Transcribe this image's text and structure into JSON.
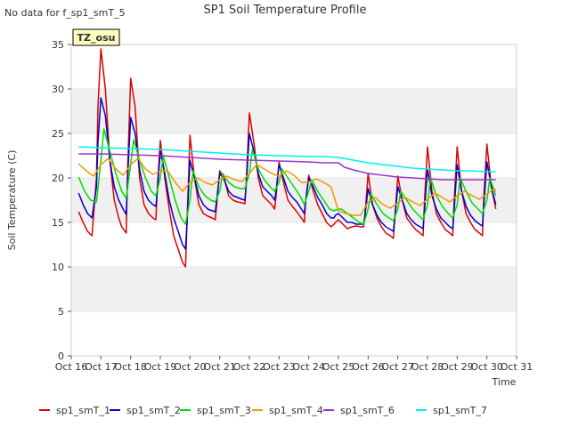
{
  "header": {
    "note": "No data for f_sp1_smT_5"
  },
  "chart_data": {
    "type": "line",
    "title": "SP1 Soil Temperature Profile",
    "xlabel": "Time",
    "ylabel": "Soil Temperature (C)",
    "badge": "TZ_osu",
    "xlim": [
      16,
      31
    ],
    "ylim": [
      0,
      35
    ],
    "x_ticks": [
      16,
      17,
      18,
      19,
      20,
      21,
      22,
      23,
      24,
      25,
      26,
      27,
      28,
      29,
      30,
      31
    ],
    "x_tick_labels": [
      "Oct 16",
      "Oct 17",
      "Oct 18",
      "Oct 19",
      "Oct 20",
      "Oct 21",
      "Oct 22",
      "Oct 23",
      "Oct 24",
      "Oct 25",
      "Oct 26",
      "Oct 27",
      "Oct 28",
      "Oct 29",
      "Oct 30",
      "Oct 31"
    ],
    "y_ticks": [
      0,
      5,
      10,
      15,
      20,
      25,
      30,
      35
    ],
    "y_tick_labels": [
      "0",
      "5",
      "10",
      "15",
      "20",
      "25",
      "30",
      "35"
    ],
    "grid": "horizontal bands",
    "legend_position": "bottom",
    "series": [
      {
        "name": "sp1_smT_1",
        "color": "#dd0000",
        "x": [
          16.25,
          16.4,
          16.55,
          16.7,
          16.85,
          16.9,
          17.0,
          17.15,
          17.3,
          17.45,
          17.6,
          17.7,
          17.85,
          17.9,
          18.0,
          18.15,
          18.3,
          18.45,
          18.6,
          18.75,
          18.85,
          18.9,
          19.0,
          19.15,
          19.3,
          19.45,
          19.6,
          19.75,
          19.85,
          19.9,
          20.0,
          20.15,
          20.3,
          20.45,
          20.6,
          20.75,
          20.85,
          20.9,
          21.0,
          21.15,
          21.3,
          21.45,
          21.6,
          21.75,
          21.85,
          21.9,
          22.0,
          22.15,
          22.3,
          22.45,
          22.6,
          22.75,
          22.85,
          22.9,
          23.0,
          23.15,
          23.3,
          23.45,
          23.6,
          23.75,
          23.85,
          23.9,
          24.0,
          24.15,
          24.3,
          24.45,
          24.6,
          24.75,
          24.85,
          24.9,
          25.0,
          25.15,
          25.3,
          25.45,
          25.6,
          25.75,
          25.85,
          25.9,
          26.0,
          26.15,
          26.3,
          26.45,
          26.6,
          26.75,
          26.85,
          26.9,
          27.0,
          27.15,
          27.3,
          27.45,
          27.6,
          27.75,
          27.85,
          27.9,
          28.0,
          28.15,
          28.3,
          28.45,
          28.6,
          28.75,
          28.85,
          28.9,
          29.0,
          29.15,
          29.3,
          29.45,
          29.6,
          29.75,
          29.85,
          29.9,
          30.0,
          30.15,
          30.3
        ],
        "y": [
          16.2,
          15.0,
          14.0,
          13.5,
          20.0,
          28.0,
          34.5,
          30.0,
          22.0,
          17.5,
          15.5,
          14.5,
          13.8,
          21.0,
          31.2,
          28.0,
          20.0,
          17.0,
          16.0,
          15.5,
          15.3,
          19.0,
          24.2,
          20.0,
          16.5,
          13.5,
          12.0,
          10.5,
          10.0,
          15.0,
          24.8,
          20.0,
          17.0,
          16.0,
          15.7,
          15.5,
          15.3,
          17.0,
          20.8,
          20.0,
          18.0,
          17.5,
          17.3,
          17.2,
          17.1,
          20.0,
          27.3,
          24.0,
          20.0,
          18.0,
          17.5,
          17.0,
          16.5,
          18.0,
          21.8,
          19.5,
          17.5,
          16.8,
          16.2,
          15.5,
          15.0,
          17.5,
          20.3,
          18.5,
          17.0,
          16.0,
          15.0,
          14.5,
          14.8,
          15.0,
          15.3,
          14.8,
          14.3,
          14.5,
          14.6,
          14.5,
          14.5,
          16.0,
          20.5,
          17.0,
          15.5,
          14.5,
          13.8,
          13.5,
          13.2,
          15.5,
          20.2,
          17.5,
          15.5,
          14.8,
          14.2,
          13.8,
          13.5,
          17.5,
          23.5,
          18.5,
          16.0,
          15.0,
          14.2,
          13.8,
          13.5,
          17.5,
          23.5,
          18.5,
          16.0,
          15.0,
          14.2,
          13.8,
          13.5,
          18.0,
          23.8,
          19.0,
          16.5
        ]
      },
      {
        "name": "sp1_smT_2",
        "color": "#0000cc",
        "x": [
          16.25,
          16.4,
          16.55,
          16.7,
          16.85,
          16.9,
          17.0,
          17.15,
          17.3,
          17.45,
          17.6,
          17.75,
          17.85,
          17.9,
          18.0,
          18.15,
          18.3,
          18.45,
          18.6,
          18.75,
          18.85,
          18.9,
          19.0,
          19.15,
          19.3,
          19.45,
          19.6,
          19.75,
          19.85,
          19.9,
          20.0,
          20.15,
          20.3,
          20.45,
          20.6,
          20.75,
          20.85,
          20.9,
          21.0,
          21.15,
          21.3,
          21.45,
          21.6,
          21.75,
          21.85,
          21.9,
          22.0,
          22.15,
          22.3,
          22.45,
          22.6,
          22.75,
          22.85,
          22.9,
          23.0,
          23.15,
          23.3,
          23.45,
          23.6,
          23.75,
          23.85,
          23.9,
          24.0,
          24.15,
          24.3,
          24.45,
          24.6,
          24.75,
          24.85,
          24.9,
          25.0,
          25.15,
          25.3,
          25.45,
          25.6,
          25.75,
          25.85,
          25.9,
          26.0,
          26.15,
          26.3,
          26.45,
          26.6,
          26.75,
          26.85,
          26.9,
          27.0,
          27.15,
          27.3,
          27.45,
          27.6,
          27.75,
          27.85,
          27.9,
          28.0,
          28.15,
          28.3,
          28.45,
          28.6,
          28.75,
          28.85,
          28.9,
          29.0,
          29.15,
          29.3,
          29.45,
          29.6,
          29.75,
          29.85,
          29.9,
          30.0,
          30.15,
          30.3
        ],
        "y": [
          18.3,
          17.0,
          16.0,
          15.5,
          19.0,
          24.0,
          29.0,
          27.0,
          22.0,
          19.0,
          17.5,
          16.5,
          15.9,
          20.0,
          26.8,
          25.0,
          21.0,
          18.5,
          17.5,
          17.0,
          16.8,
          18.5,
          23.0,
          20.5,
          17.5,
          15.5,
          14.0,
          12.5,
          12.0,
          15.0,
          22.0,
          20.0,
          18.0,
          17.0,
          16.5,
          16.3,
          16.2,
          17.5,
          20.5,
          19.8,
          18.5,
          18.0,
          17.8,
          17.6,
          17.5,
          19.5,
          25.0,
          23.0,
          20.5,
          19.0,
          18.5,
          18.0,
          17.5,
          18.5,
          21.5,
          20.0,
          18.5,
          17.8,
          17.3,
          16.5,
          16.0,
          17.5,
          20.0,
          19.0,
          17.8,
          17.0,
          16.0,
          15.5,
          15.5,
          15.8,
          16.0,
          15.5,
          15.0,
          15.0,
          14.8,
          14.8,
          14.8,
          16.0,
          18.8,
          17.0,
          15.8,
          15.0,
          14.5,
          14.2,
          14.0,
          15.5,
          19.0,
          17.5,
          16.0,
          15.3,
          14.8,
          14.5,
          14.3,
          16.5,
          21.0,
          18.0,
          16.5,
          15.5,
          15.0,
          14.5,
          14.3,
          16.5,
          21.5,
          18.5,
          16.8,
          15.8,
          15.2,
          14.8,
          14.6,
          17.0,
          21.8,
          19.0,
          17.0
        ]
      },
      {
        "name": "sp1_smT_3",
        "color": "#00dd00",
        "x": [
          16.25,
          16.45,
          16.65,
          16.85,
          17.0,
          17.1,
          17.3,
          17.5,
          17.7,
          17.85,
          18.0,
          18.1,
          18.3,
          18.5,
          18.7,
          18.85,
          19.0,
          19.1,
          19.3,
          19.5,
          19.7,
          19.85,
          20.0,
          20.1,
          20.3,
          20.5,
          20.7,
          20.85,
          21.0,
          21.1,
          21.3,
          21.5,
          21.7,
          21.85,
          22.0,
          22.1,
          22.3,
          22.5,
          22.7,
          22.85,
          23.0,
          23.1,
          23.3,
          23.5,
          23.7,
          23.85,
          24.0,
          24.1,
          24.3,
          24.5,
          24.7,
          24.85,
          25.0,
          25.1,
          25.3,
          25.5,
          25.7,
          25.85,
          26.0,
          26.1,
          26.3,
          26.5,
          26.7,
          26.85,
          27.0,
          27.1,
          27.3,
          27.5,
          27.7,
          27.85,
          28.0,
          28.1,
          28.3,
          28.5,
          28.7,
          28.85,
          29.0,
          29.1,
          29.3,
          29.5,
          29.7,
          29.85,
          30.0,
          30.1,
          30.3
        ],
        "y": [
          20.1,
          18.5,
          17.5,
          17.3,
          22.0,
          25.5,
          23.0,
          20.5,
          18.5,
          17.7,
          21.5,
          24.3,
          22.0,
          20.0,
          18.5,
          18.0,
          20.0,
          22.5,
          20.0,
          17.5,
          15.5,
          14.8,
          17.5,
          20.8,
          19.0,
          18.0,
          17.5,
          17.3,
          18.5,
          20.5,
          19.5,
          19.0,
          18.8,
          18.8,
          20.5,
          23.2,
          21.0,
          19.8,
          19.0,
          18.5,
          19.5,
          21.0,
          20.0,
          19.0,
          18.0,
          17.0,
          18.5,
          19.8,
          18.5,
          17.5,
          16.5,
          16.3,
          16.5,
          16.5,
          16.0,
          15.5,
          15.0,
          14.8,
          16.5,
          18.2,
          17.0,
          16.0,
          15.5,
          15.2,
          16.5,
          18.5,
          17.5,
          16.5,
          15.8,
          15.3,
          17.0,
          20.0,
          18.0,
          16.8,
          16.0,
          15.5,
          17.0,
          20.0,
          18.5,
          17.2,
          16.5,
          16.0,
          17.5,
          20.0,
          18.0
        ]
      },
      {
        "name": "sp1_smT_4",
        "color": "#ee9900",
        "x": [
          16.25,
          16.5,
          16.75,
          17.0,
          17.25,
          17.5,
          17.75,
          18.0,
          18.25,
          18.5,
          18.75,
          19.0,
          19.25,
          19.5,
          19.75,
          20.0,
          20.25,
          20.5,
          20.75,
          21.0,
          21.25,
          21.5,
          21.75,
          22.0,
          22.25,
          22.5,
          22.75,
          23.0,
          23.25,
          23.5,
          23.75,
          24.0,
          24.25,
          24.5,
          24.75,
          25.0,
          25.25,
          25.5,
          25.75,
          26.0,
          26.25,
          26.5,
          26.75,
          27.0,
          27.25,
          27.5,
          27.75,
          28.0,
          28.25,
          28.5,
          28.75,
          29.0,
          29.25,
          29.5,
          29.75,
          30.0,
          30.25,
          30.3
        ],
        "y": [
          21.6,
          20.8,
          20.2,
          21.5,
          22.2,
          21.0,
          20.3,
          21.5,
          22.2,
          21.0,
          20.4,
          20.8,
          20.8,
          19.5,
          18.5,
          19.5,
          20.0,
          19.5,
          19.2,
          19.8,
          20.2,
          19.8,
          19.6,
          20.5,
          21.5,
          21.0,
          20.5,
          20.2,
          20.8,
          20.3,
          19.5,
          19.5,
          19.9,
          19.5,
          19.0,
          16.3,
          16.0,
          15.8,
          15.8,
          17.3,
          17.8,
          17.0,
          16.6,
          17.2,
          17.8,
          17.3,
          16.9,
          17.6,
          18.3,
          17.8,
          17.3,
          18.0,
          18.5,
          18.0,
          17.6,
          18.2,
          18.8,
          18.5
        ]
      },
      {
        "name": "sp1_smT_6",
        "color": "#9933cc",
        "x": [
          16.25,
          17.0,
          18.0,
          19.0,
          19.5,
          20.0,
          21.0,
          22.0,
          23.0,
          24.0,
          24.5,
          25.0,
          25.2,
          25.5,
          26.0,
          26.5,
          27.0,
          27.5,
          28.0,
          28.5,
          29.0,
          29.5,
          30.0,
          30.3
        ],
        "y": [
          22.7,
          22.7,
          22.6,
          22.5,
          22.4,
          22.3,
          22.1,
          22.0,
          21.9,
          21.8,
          21.7,
          21.7,
          21.2,
          20.9,
          20.5,
          20.3,
          20.1,
          20.0,
          19.9,
          19.8,
          19.8,
          19.8,
          19.8,
          19.8
        ]
      },
      {
        "name": "sp1_smT_7",
        "color": "#00eeee",
        "x": [
          16.25,
          17.0,
          18.0,
          19.0,
          19.5,
          20.0,
          21.0,
          22.0,
          23.0,
          24.0,
          24.5,
          25.0,
          25.5,
          26.0,
          26.5,
          27.0,
          27.5,
          28.0,
          28.5,
          29.0,
          29.5,
          30.0,
          30.3
        ],
        "y": [
          23.5,
          23.4,
          23.3,
          23.2,
          23.1,
          23.0,
          22.8,
          22.6,
          22.5,
          22.4,
          22.4,
          22.3,
          22.0,
          21.7,
          21.5,
          21.3,
          21.1,
          21.0,
          20.9,
          20.8,
          20.8,
          20.7,
          20.7
        ]
      }
    ]
  }
}
